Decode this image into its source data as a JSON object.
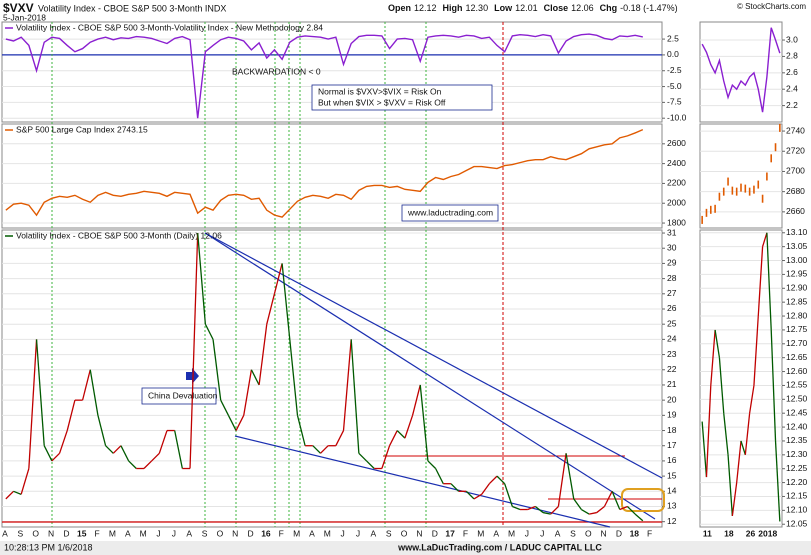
{
  "header": {
    "ticker": "$VXV",
    "name": "Volatility Index - CBOE S&P 500 3-Month INDX",
    "date": "5-Jan-2018",
    "quote": [
      {
        "label": "Open",
        "value": "12.12"
      },
      {
        "label": "High",
        "value": "12.30"
      },
      {
        "label": "Low",
        "value": "12.01"
      },
      {
        "label": "Close",
        "value": "12.06"
      },
      {
        "label": "Chg",
        "value": "-0.18 (-1.47%)"
      }
    ],
    "source": "© StockCharts.com"
  },
  "chart_data": [
    {
      "type": "line",
      "title": "Volatility Index - CBOE S&P 500 3-Month-Volatility Index - New Methodology 2.84",
      "color": "#8a1fd0",
      "zero_line_color": "#1b2fb0",
      "ylim": [
        -10.6,
        5.2
      ],
      "yticks": [
        2.5,
        {
          "value": 0,
          "label": "0.0"
        },
        -2.5,
        {
          "value": -5,
          "label": "-5.0"
        },
        -7.5,
        {
          "value": -10,
          "label": "-10.0"
        }
      ],
      "values": [
        2.5,
        2.2,
        2.8,
        1.5,
        -2.5,
        2.0,
        2.8,
        2.6,
        1.5,
        0.5,
        1.0,
        2.0,
        2.5,
        2.8,
        2.4,
        2.7,
        2.6,
        2.9,
        2.8,
        2.6,
        2.2,
        1.8,
        2.6,
        2.9,
        2.4,
        -10.0,
        0.5,
        1.5,
        2.4,
        2.8,
        2.6,
        2.2,
        0.8,
        1.9,
        -0.5,
        0.8,
        -0.7,
        2.0,
        2.8,
        3.0,
        2.9,
        2.8,
        2.5,
        2.8,
        -1.5,
        1.8,
        2.9,
        3.1,
        3.1,
        3.0,
        1.0,
        2.5,
        2.6,
        2.4,
        -1.0,
        2.8,
        3.0,
        3.1,
        3.0,
        2.8,
        3.1,
        3.0,
        2.6,
        2.8,
        1.5,
        0.5,
        3.0,
        3.2,
        3.1,
        2.9,
        3.2,
        3.0,
        0.3,
        2.2,
        2.9,
        3.2,
        3.3,
        3.1,
        2.6,
        2.4,
        3.0,
        2.9,
        3.1,
        2.84,
        null,
        null
      ],
      "annotations": [
        {
          "text": "BACKWARDATION < 0",
          "color": "#d00000"
        },
        {
          "text": "Normal is $VXV>$VIX = Risk On",
          "color": "#1a2a90"
        },
        {
          "text": "But when $VIX > $VXV = Risk Off",
          "color": "#1a2a90"
        }
      ]
    },
    {
      "type": "line",
      "title": "S&P 500 Large Cap Index 2743.15",
      "color": "#e05a00",
      "ylim": [
        1750,
        2800
      ],
      "yticks": [
        2600,
        2400,
        2200,
        2000,
        1800
      ],
      "values": [
        1930,
        1990,
        2000,
        1980,
        1880,
        2010,
        2050,
        2070,
        2060,
        2080,
        2040,
        2010,
        2080,
        2110,
        2080,
        2070,
        2090,
        2100,
        2120,
        2110,
        2100,
        2070,
        2110,
        2100,
        2090,
        1900,
        1960,
        1930,
        2030,
        2080,
        2090,
        2080,
        2040,
        2050,
        1930,
        1880,
        1860,
        1940,
        2020,
        2060,
        2080,
        2070,
        2050,
        2090,
        2080,
        2040,
        2130,
        2170,
        2180,
        2180,
        2160,
        2170,
        2140,
        2130,
        2120,
        2210,
        2260,
        2240,
        2270,
        2290,
        2330,
        2370,
        2370,
        2360,
        2350,
        2380,
        2390,
        2410,
        2430,
        2440,
        2440,
        2470,
        2450,
        2440,
        2470,
        2500,
        2550,
        2570,
        2590,
        2600,
        2660,
        2680,
        2710,
        2743.15,
        null,
        null
      ],
      "annotations": [
        {
          "text": "www.laductrading.com",
          "color": "#1a2a90"
        }
      ]
    },
    {
      "type": "line",
      "title": "Volatility Index - CBOE S&P 500 3-Month (Daily) 12.06",
      "color_up": "#c00000",
      "color_down": "#005a00",
      "ylim": [
        11.65,
        31.2
      ],
      "yticks": [
        31,
        30,
        29,
        28,
        27,
        26,
        25,
        24,
        23,
        22,
        21,
        20,
        19,
        18,
        17,
        16,
        15,
        14,
        13,
        12
      ],
      "categories": [
        "A",
        null,
        "S",
        null,
        "O",
        null,
        "N",
        null,
        "D",
        null,
        "15",
        null,
        "F",
        null,
        "M",
        null,
        "A",
        null,
        "M",
        null,
        "J",
        null,
        "J",
        null,
        "A",
        null,
        "S",
        null,
        "O",
        null,
        "N",
        null,
        "D",
        null,
        "16",
        null,
        "F",
        null,
        "M",
        null,
        "A",
        null,
        "M",
        null,
        "J",
        null,
        "J",
        null,
        "A",
        null,
        "S",
        null,
        "O",
        null,
        "N",
        null,
        "D",
        null,
        "17",
        null,
        "F",
        null,
        "M",
        null,
        "A",
        null,
        "M",
        null,
        "J",
        null,
        "J",
        null,
        "A",
        null,
        "S",
        null,
        "O",
        null,
        "N",
        null,
        "D",
        null,
        "18",
        null,
        "F",
        null
      ],
      "values": [
        13.5,
        14.0,
        13.8,
        15.5,
        24,
        17,
        16,
        16.5,
        18,
        20,
        20,
        22,
        19,
        17,
        16.5,
        17,
        16,
        15.5,
        15.5,
        16,
        16.5,
        18,
        18,
        15.5,
        15.5,
        31,
        25,
        24,
        20,
        19,
        18,
        19,
        22,
        21,
        25,
        27,
        29,
        24,
        19,
        17,
        17,
        16.5,
        17,
        17,
        18,
        24,
        16.5,
        16,
        15.5,
        15.5,
        17,
        18,
        17.5,
        19,
        21,
        16,
        15.5,
        14.5,
        14.5,
        14,
        14,
        13.5,
        13.8,
        14.5,
        15,
        14.5,
        13,
        12.8,
        12.8,
        13,
        12.6,
        12.5,
        13,
        16.5,
        13.5,
        12.8,
        12.5,
        12.6,
        13,
        14,
        12.8,
        13,
        12.5,
        12.06,
        null,
        null
      ],
      "annotations": [
        {
          "text": "China Devaluation",
          "color": "#1a2a90"
        }
      ]
    },
    {
      "type": "line",
      "color": "#8a1fd0",
      "ylim": [
        2.0,
        3.22
      ],
      "yticks": [
        {
          "value": 3,
          "label": "3.0"
        },
        2.8,
        2.6,
        2.4,
        2.2
      ],
      "values": [
        2.95,
        2.85,
        2.7,
        2.6,
        2.75,
        2.5,
        2.3,
        2.45,
        2.4,
        2.5,
        2.45,
        2.55,
        2.6,
        2.4,
        2.12,
        2.55,
        3.15,
        3.0,
        2.84
      ]
    },
    {
      "type": "tick",
      "color": "#e05a00",
      "ylim": [
        2644,
        2747
      ],
      "yticks": [
        2740,
        2720,
        2700,
        2680,
        2660
      ],
      "values": [
        2652,
        2659,
        2662,
        2663,
        2675,
        2680,
        2690,
        2681,
        2680,
        2684,
        2683,
        2680,
        2682,
        2687,
        2673,
        2695,
        2713,
        2724,
        2743.15
      ]
    },
    {
      "type": "line",
      "color_up": "#c00000",
      "color_down": "#005a00",
      "ylim": [
        12.04,
        13.11
      ],
      "yticks": [
        {
          "value": 13.1,
          "label": "13.10"
        },
        13.05,
        {
          "value": 13,
          "label": "13.00"
        },
        12.95,
        {
          "value": 12.9,
          "label": "12.90"
        },
        12.85,
        {
          "value": 12.8,
          "label": "12.80"
        },
        12.75,
        {
          "value": 12.7,
          "label": "12.70"
        },
        12.65,
        {
          "value": 12.6,
          "label": "12.60"
        },
        12.55,
        {
          "value": 12.5,
          "label": "12.50"
        },
        12.45,
        {
          "value": 12.4,
          "label": "12.40"
        },
        12.35,
        {
          "value": 12.3,
          "label": "12.30"
        },
        12.25,
        {
          "value": 12.2,
          "label": "12.20"
        },
        12.15,
        {
          "value": 12.1,
          "label": "12.10"
        },
        12.05
      ],
      "categories": [
        null,
        "11",
        null,
        null,
        null,
        null,
        "18",
        null,
        null,
        null,
        null,
        "26",
        null,
        null,
        null,
        "2018",
        null,
        null,
        null
      ],
      "values": [
        12.42,
        12.22,
        12.55,
        12.75,
        12.65,
        12.45,
        12.3,
        12.08,
        12.2,
        12.35,
        12.3,
        12.45,
        12.55,
        12.8,
        13.05,
        13.1,
        12.75,
        12.35,
        12.06
      ]
    }
  ],
  "footer": {
    "timestamp": "10:28:13 PM 1/6/2018",
    "credit": "www.LaDucTrading.com / LADUC CAPITAL LLC"
  }
}
